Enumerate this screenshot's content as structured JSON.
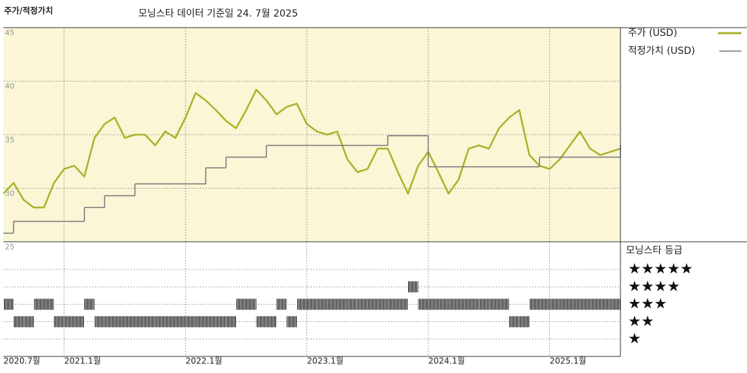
{
  "chart_data": {
    "type": "line",
    "title": "주가/적정가치",
    "subtitle": "모닝스타 데이터 기준일 24. 7월 2025",
    "x": [
      "2020-07",
      "2020-08",
      "2020-09",
      "2020-10",
      "2020-11",
      "2020-12",
      "2021-01",
      "2021-02",
      "2021-03",
      "2021-04",
      "2021-05",
      "2021-06",
      "2021-07",
      "2021-08",
      "2021-09",
      "2021-10",
      "2021-11",
      "2021-12",
      "2022-01",
      "2022-02",
      "2022-03",
      "2022-04",
      "2022-05",
      "2022-06",
      "2022-07",
      "2022-08",
      "2022-09",
      "2022-10",
      "2022-11",
      "2022-12",
      "2023-01",
      "2023-02",
      "2023-03",
      "2023-04",
      "2023-05",
      "2023-06",
      "2023-07",
      "2023-08",
      "2023-09",
      "2023-10",
      "2023-11",
      "2023-12",
      "2024-01",
      "2024-02",
      "2024-03",
      "2024-04",
      "2024-05",
      "2024-06",
      "2024-07",
      "2024-08",
      "2024-09",
      "2024-10",
      "2024-11",
      "2024-12",
      "2025-01",
      "2025-02",
      "2025-03",
      "2025-04",
      "2025-05",
      "2025-06",
      "2025-07",
      "2025-08"
    ],
    "xlim": [
      "2020-07",
      "2025-08"
    ],
    "xticks": [
      {
        "value": "2020-07",
        "label": "2020.7월"
      },
      {
        "value": "2021-01",
        "label": "2021.1월"
      },
      {
        "value": "2022-01",
        "label": "2022.1월"
      },
      {
        "value": "2023-01",
        "label": "2023.1월"
      },
      {
        "value": "2024-01",
        "label": "2024.1월"
      },
      {
        "value": "2025-01",
        "label": "2025.1월"
      }
    ],
    "ylim": [
      25,
      45
    ],
    "yticks": [
      25,
      30,
      35,
      40,
      45
    ],
    "grid": true,
    "legend": "right",
    "series": [
      {
        "name": "주가 (USD)",
        "color": "#a8b32a",
        "values": [
          29.5,
          30.5,
          28.9,
          28.2,
          28.2,
          30.5,
          31.8,
          32.1,
          31.1,
          34.7,
          36.0,
          36.6,
          34.7,
          35.0,
          35.0,
          34.0,
          35.3,
          34.7,
          36.6,
          38.9,
          38.2,
          37.3,
          36.3,
          35.6,
          37.3,
          39.2,
          38.2,
          36.9,
          37.6,
          37.9,
          36.0,
          35.3,
          35.0,
          35.3,
          32.7,
          31.5,
          31.8,
          33.7,
          33.7,
          31.5,
          29.5,
          32.1,
          33.4,
          31.5,
          29.5,
          30.8,
          33.7,
          34.0,
          33.7,
          35.6,
          36.6,
          37.3,
          33.1,
          32.1,
          31.8,
          32.7,
          34.0,
          35.3,
          33.7,
          33.1,
          33.4,
          33.7
        ]
      },
      {
        "name": "적정가치 (USD)",
        "color": "#777777",
        "step": true,
        "x": [
          "2020-07",
          "2020-08",
          "2021-03",
          "2021-05",
          "2021-08",
          "2022-03",
          "2022-05",
          "2022-09",
          "2023-09",
          "2024-01",
          "2024-12",
          "2025-08"
        ],
        "values": [
          25.8,
          26.9,
          28.2,
          29.3,
          30.4,
          31.9,
          32.9,
          34.0,
          34.9,
          32.0,
          32.9,
          34.0
        ]
      }
    ],
    "ratings": {
      "title": "모닝스타 등급",
      "values": [
        3,
        2,
        2,
        3,
        3,
        2,
        2,
        2,
        3,
        2,
        2,
        2,
        2,
        2,
        2,
        2,
        2,
        2,
        2,
        2,
        2,
        2,
        2,
        3,
        3,
        2,
        2,
        3,
        2,
        3,
        3,
        3,
        3,
        3,
        3,
        3,
        3,
        3,
        3,
        3,
        4,
        3,
        3,
        3,
        3,
        3,
        3,
        3,
        3,
        3,
        2,
        2,
        3,
        3,
        3,
        3,
        3,
        3,
        3,
        3,
        3,
        3
      ],
      "ticks": [
        {
          "value": 5,
          "label": "★★★★★"
        },
        {
          "value": 4,
          "label": "★★★★"
        },
        {
          "value": 3,
          "label": "★★★"
        },
        {
          "value": 2,
          "label": "★★"
        },
        {
          "value": 1,
          "label": "★"
        }
      ]
    }
  }
}
